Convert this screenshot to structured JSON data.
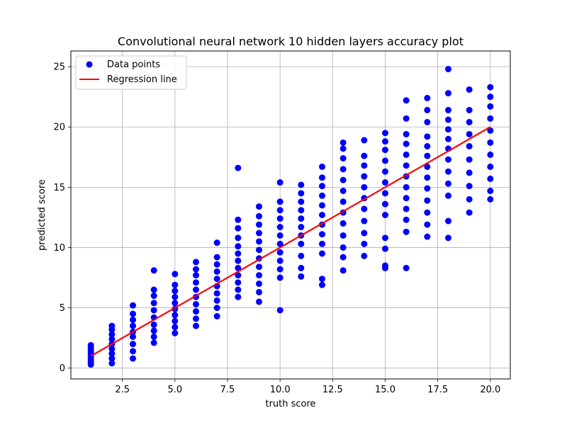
{
  "chart_data": {
    "type": "scatter",
    "title": "Convolutional neural network 10 hidden layers accuracy plot",
    "xlabel": "truth score",
    "ylabel": "predicted score",
    "xlim": [
      0.05,
      20.95
    ],
    "ylim": [
      -0.9,
      26.3
    ],
    "xticks": [
      2.5,
      5.0,
      7.5,
      10.0,
      12.5,
      15.0,
      17.5,
      20.0
    ],
    "xtick_labels": [
      "2.5",
      "5.0",
      "7.5",
      "10.0",
      "12.5",
      "15.0",
      "17.5",
      "20.0"
    ],
    "yticks": [
      0,
      5,
      10,
      15,
      20,
      25
    ],
    "ytick_labels": [
      "0",
      "5",
      "10",
      "15",
      "20",
      "25"
    ],
    "grid": true,
    "legend": {
      "position": "top-left",
      "entries": [
        {
          "label": "Data points",
          "kind": "marker",
          "color": "#0000ff"
        },
        {
          "label": "Regression line",
          "kind": "line",
          "color": "#ff0000"
        }
      ]
    },
    "series": [
      {
        "name": "Data points",
        "kind": "scatter",
        "color": "#0000ff",
        "points": [
          [
            1,
            0.3
          ],
          [
            1,
            0.5
          ],
          [
            1,
            0.7
          ],
          [
            1,
            0.9
          ],
          [
            1,
            1.1
          ],
          [
            1,
            1.3
          ],
          [
            1,
            1.5
          ],
          [
            1,
            1.7
          ],
          [
            1,
            1.9
          ],
          [
            2,
            0.4
          ],
          [
            2,
            0.8
          ],
          [
            2,
            1.2
          ],
          [
            2,
            1.6
          ],
          [
            2,
            2.0
          ],
          [
            2,
            2.4
          ],
          [
            2,
            2.8
          ],
          [
            2,
            3.2
          ],
          [
            2,
            3.5
          ],
          [
            3,
            0.8
          ],
          [
            3,
            1.4
          ],
          [
            3,
            2.0
          ],
          [
            3,
            2.6
          ],
          [
            3,
            3.0
          ],
          [
            3,
            3.5
          ],
          [
            3,
            4.0
          ],
          [
            3,
            4.5
          ],
          [
            3,
            5.2
          ],
          [
            4,
            2.1
          ],
          [
            4,
            2.6
          ],
          [
            4,
            3.1
          ],
          [
            4,
            3.6
          ],
          [
            4,
            4.2
          ],
          [
            4,
            4.8
          ],
          [
            4,
            5.4
          ],
          [
            4,
            6.0
          ],
          [
            4,
            6.5
          ],
          [
            4,
            8.1
          ],
          [
            5,
            2.9
          ],
          [
            5,
            3.4
          ],
          [
            5,
            3.9
          ],
          [
            5,
            4.4
          ],
          [
            5,
            4.9
          ],
          [
            5,
            5.4
          ],
          [
            5,
            5.9
          ],
          [
            5,
            6.4
          ],
          [
            5,
            6.9
          ],
          [
            5,
            7.8
          ],
          [
            6,
            3.5
          ],
          [
            6,
            4.1
          ],
          [
            6,
            4.7
          ],
          [
            6,
            5.3
          ],
          [
            6,
            5.9
          ],
          [
            6,
            6.5
          ],
          [
            6,
            7.1
          ],
          [
            6,
            7.7
          ],
          [
            6,
            8.2
          ],
          [
            6,
            8.8
          ],
          [
            7,
            4.3
          ],
          [
            7,
            5.0
          ],
          [
            7,
            5.6
          ],
          [
            7,
            6.2
          ],
          [
            7,
            6.8
          ],
          [
            7,
            7.4
          ],
          [
            7,
            8.0
          ],
          [
            7,
            8.6
          ],
          [
            7,
            9.2
          ],
          [
            7,
            10.4
          ],
          [
            8,
            5.9
          ],
          [
            8,
            6.5
          ],
          [
            8,
            7.1
          ],
          [
            8,
            7.7
          ],
          [
            8,
            8.3
          ],
          [
            8,
            8.9
          ],
          [
            8,
            9.5
          ],
          [
            8,
            10.1
          ],
          [
            8,
            10.8
          ],
          [
            8,
            11.6
          ],
          [
            8,
            12.3
          ],
          [
            8,
            16.6
          ],
          [
            9,
            5.5
          ],
          [
            9,
            6.3
          ],
          [
            9,
            7.0
          ],
          [
            9,
            7.7
          ],
          [
            9,
            8.4
          ],
          [
            9,
            9.1
          ],
          [
            9,
            9.8
          ],
          [
            9,
            10.5
          ],
          [
            9,
            11.2
          ],
          [
            9,
            11.9
          ],
          [
            9,
            12.6
          ],
          [
            9,
            13.4
          ],
          [
            10,
            4.8
          ],
          [
            10,
            7.5
          ],
          [
            10,
            8.2
          ],
          [
            10,
            8.9
          ],
          [
            10,
            9.6
          ],
          [
            10,
            10.3
          ],
          [
            10,
            11.0
          ],
          [
            10,
            11.7
          ],
          [
            10,
            12.4
          ],
          [
            10,
            13.1
          ],
          [
            10,
            13.8
          ],
          [
            10,
            15.4
          ],
          [
            11,
            7.6
          ],
          [
            11,
            8.3
          ],
          [
            11,
            9.3
          ],
          [
            11,
            10.3
          ],
          [
            11,
            11.0
          ],
          [
            11,
            11.7
          ],
          [
            11,
            12.4
          ],
          [
            11,
            13.1
          ],
          [
            11,
            13.8
          ],
          [
            11,
            14.5
          ],
          [
            11,
            15.2
          ],
          [
            12,
            6.9
          ],
          [
            12,
            7.4
          ],
          [
            12,
            9.5
          ],
          [
            12,
            10.3
          ],
          [
            12,
            11.1
          ],
          [
            12,
            11.9
          ],
          [
            12,
            12.7
          ],
          [
            12,
            13.5
          ],
          [
            12,
            14.3
          ],
          [
            12,
            15.1
          ],
          [
            12,
            15.8
          ],
          [
            12,
            16.7
          ],
          [
            13,
            8.1
          ],
          [
            13,
            9.2
          ],
          [
            13,
            10.0
          ],
          [
            13,
            11.0
          ],
          [
            13,
            12.0
          ],
          [
            13,
            12.9
          ],
          [
            13,
            13.8
          ],
          [
            13,
            14.7
          ],
          [
            13,
            15.6
          ],
          [
            13,
            16.5
          ],
          [
            13,
            17.4
          ],
          [
            13,
            18.2
          ],
          [
            13,
            18.7
          ],
          [
            14,
            9.3
          ],
          [
            14,
            10.3
          ],
          [
            14,
            11.2
          ],
          [
            14,
            12.2
          ],
          [
            14,
            13.2
          ],
          [
            14,
            14.1
          ],
          [
            14,
            15.0
          ],
          [
            14,
            15.9
          ],
          [
            14,
            16.8
          ],
          [
            14,
            17.6
          ],
          [
            14,
            18.9
          ],
          [
            15,
            8.3
          ],
          [
            15,
            8.5
          ],
          [
            15,
            9.9
          ],
          [
            15,
            10.8
          ],
          [
            15,
            12.7
          ],
          [
            15,
            13.6
          ],
          [
            15,
            14.5
          ],
          [
            15,
            15.4
          ],
          [
            15,
            16.3
          ],
          [
            15,
            17.2
          ],
          [
            15,
            18.1
          ],
          [
            15,
            18.8
          ],
          [
            15,
            19.5
          ],
          [
            16,
            8.3
          ],
          [
            16,
            11.3
          ],
          [
            16,
            12.3
          ],
          [
            16,
            13.2
          ],
          [
            16,
            14.1
          ],
          [
            16,
            15.0
          ],
          [
            16,
            15.9
          ],
          [
            16,
            16.8
          ],
          [
            16,
            17.7
          ],
          [
            16,
            18.6
          ],
          [
            16,
            19.4
          ],
          [
            16,
            20.7
          ],
          [
            16,
            22.2
          ],
          [
            17,
            10.9
          ],
          [
            17,
            11.9
          ],
          [
            17,
            12.9
          ],
          [
            17,
            13.9
          ],
          [
            17,
            14.9
          ],
          [
            17,
            15.8
          ],
          [
            17,
            16.7
          ],
          [
            17,
            17.6
          ],
          [
            17,
            18.4
          ],
          [
            17,
            19.2
          ],
          [
            17,
            20.4
          ],
          [
            17,
            21.4
          ],
          [
            17,
            22.4
          ],
          [
            18,
            10.8
          ],
          [
            18,
            12.2
          ],
          [
            18,
            14.3
          ],
          [
            18,
            15.3
          ],
          [
            18,
            16.3
          ],
          [
            18,
            17.3
          ],
          [
            18,
            18.2
          ],
          [
            18,
            19.0
          ],
          [
            18,
            19.8
          ],
          [
            18,
            20.6
          ],
          [
            18,
            21.4
          ],
          [
            18,
            22.8
          ],
          [
            18,
            24.8
          ],
          [
            19,
            12.9
          ],
          [
            19,
            14.0
          ],
          [
            19,
            15.1
          ],
          [
            19,
            16.2
          ],
          [
            19,
            17.3
          ],
          [
            19,
            18.4
          ],
          [
            19,
            19.4
          ],
          [
            19,
            20.4
          ],
          [
            19,
            21.4
          ],
          [
            19,
            23.1
          ],
          [
            20,
            14.0
          ],
          [
            20,
            14.7
          ],
          [
            20,
            15.7
          ],
          [
            20,
            16.7
          ],
          [
            20,
            17.7
          ],
          [
            20,
            18.7
          ],
          [
            20,
            19.7
          ],
          [
            20,
            20.7
          ],
          [
            20,
            21.7
          ],
          [
            20,
            22.5
          ],
          [
            20,
            23.3
          ]
        ]
      },
      {
        "name": "Regression line",
        "kind": "line",
        "color": "#ff0000",
        "points": [
          [
            1,
            1
          ],
          [
            20,
            20
          ]
        ]
      }
    ]
  }
}
